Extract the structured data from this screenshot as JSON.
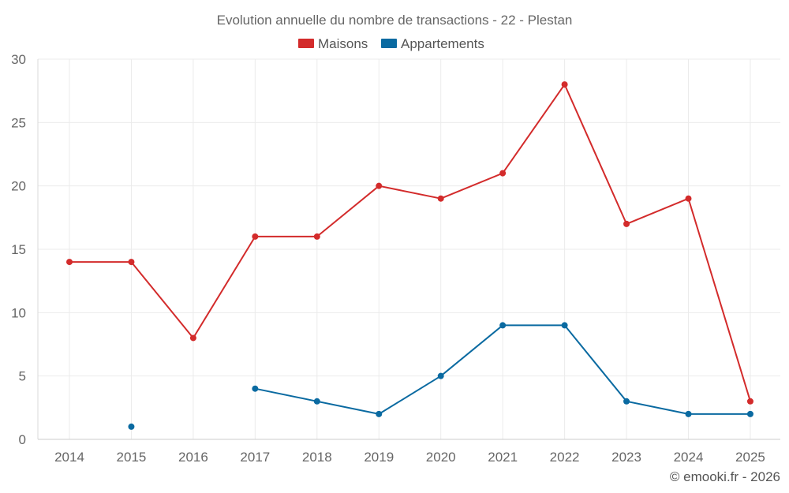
{
  "chart_data": {
    "type": "line",
    "title": "Evolution annuelle du nombre de transactions - 22 - Plestan",
    "categories": [
      "2014",
      "2015",
      "2016",
      "2017",
      "2018",
      "2019",
      "2020",
      "2021",
      "2022",
      "2023",
      "2024",
      "2025"
    ],
    "series": [
      {
        "name": "Maisons",
        "color": "#d32b2b",
        "values": [
          14,
          14,
          8,
          16,
          16,
          20,
          19,
          21,
          28,
          17,
          19,
          3
        ]
      },
      {
        "name": "Appartements",
        "color": "#0a6aa1",
        "values": [
          null,
          1,
          null,
          4,
          3,
          2,
          5,
          9,
          9,
          3,
          2,
          2
        ]
      }
    ],
    "ylim": [
      0,
      30
    ],
    "yticks": [
      0,
      5,
      10,
      15,
      20,
      25,
      30
    ],
    "legend_position": "top-center",
    "grid": true,
    "xlabel": "",
    "ylabel": ""
  },
  "credit": "© emooki.fr - 2026"
}
